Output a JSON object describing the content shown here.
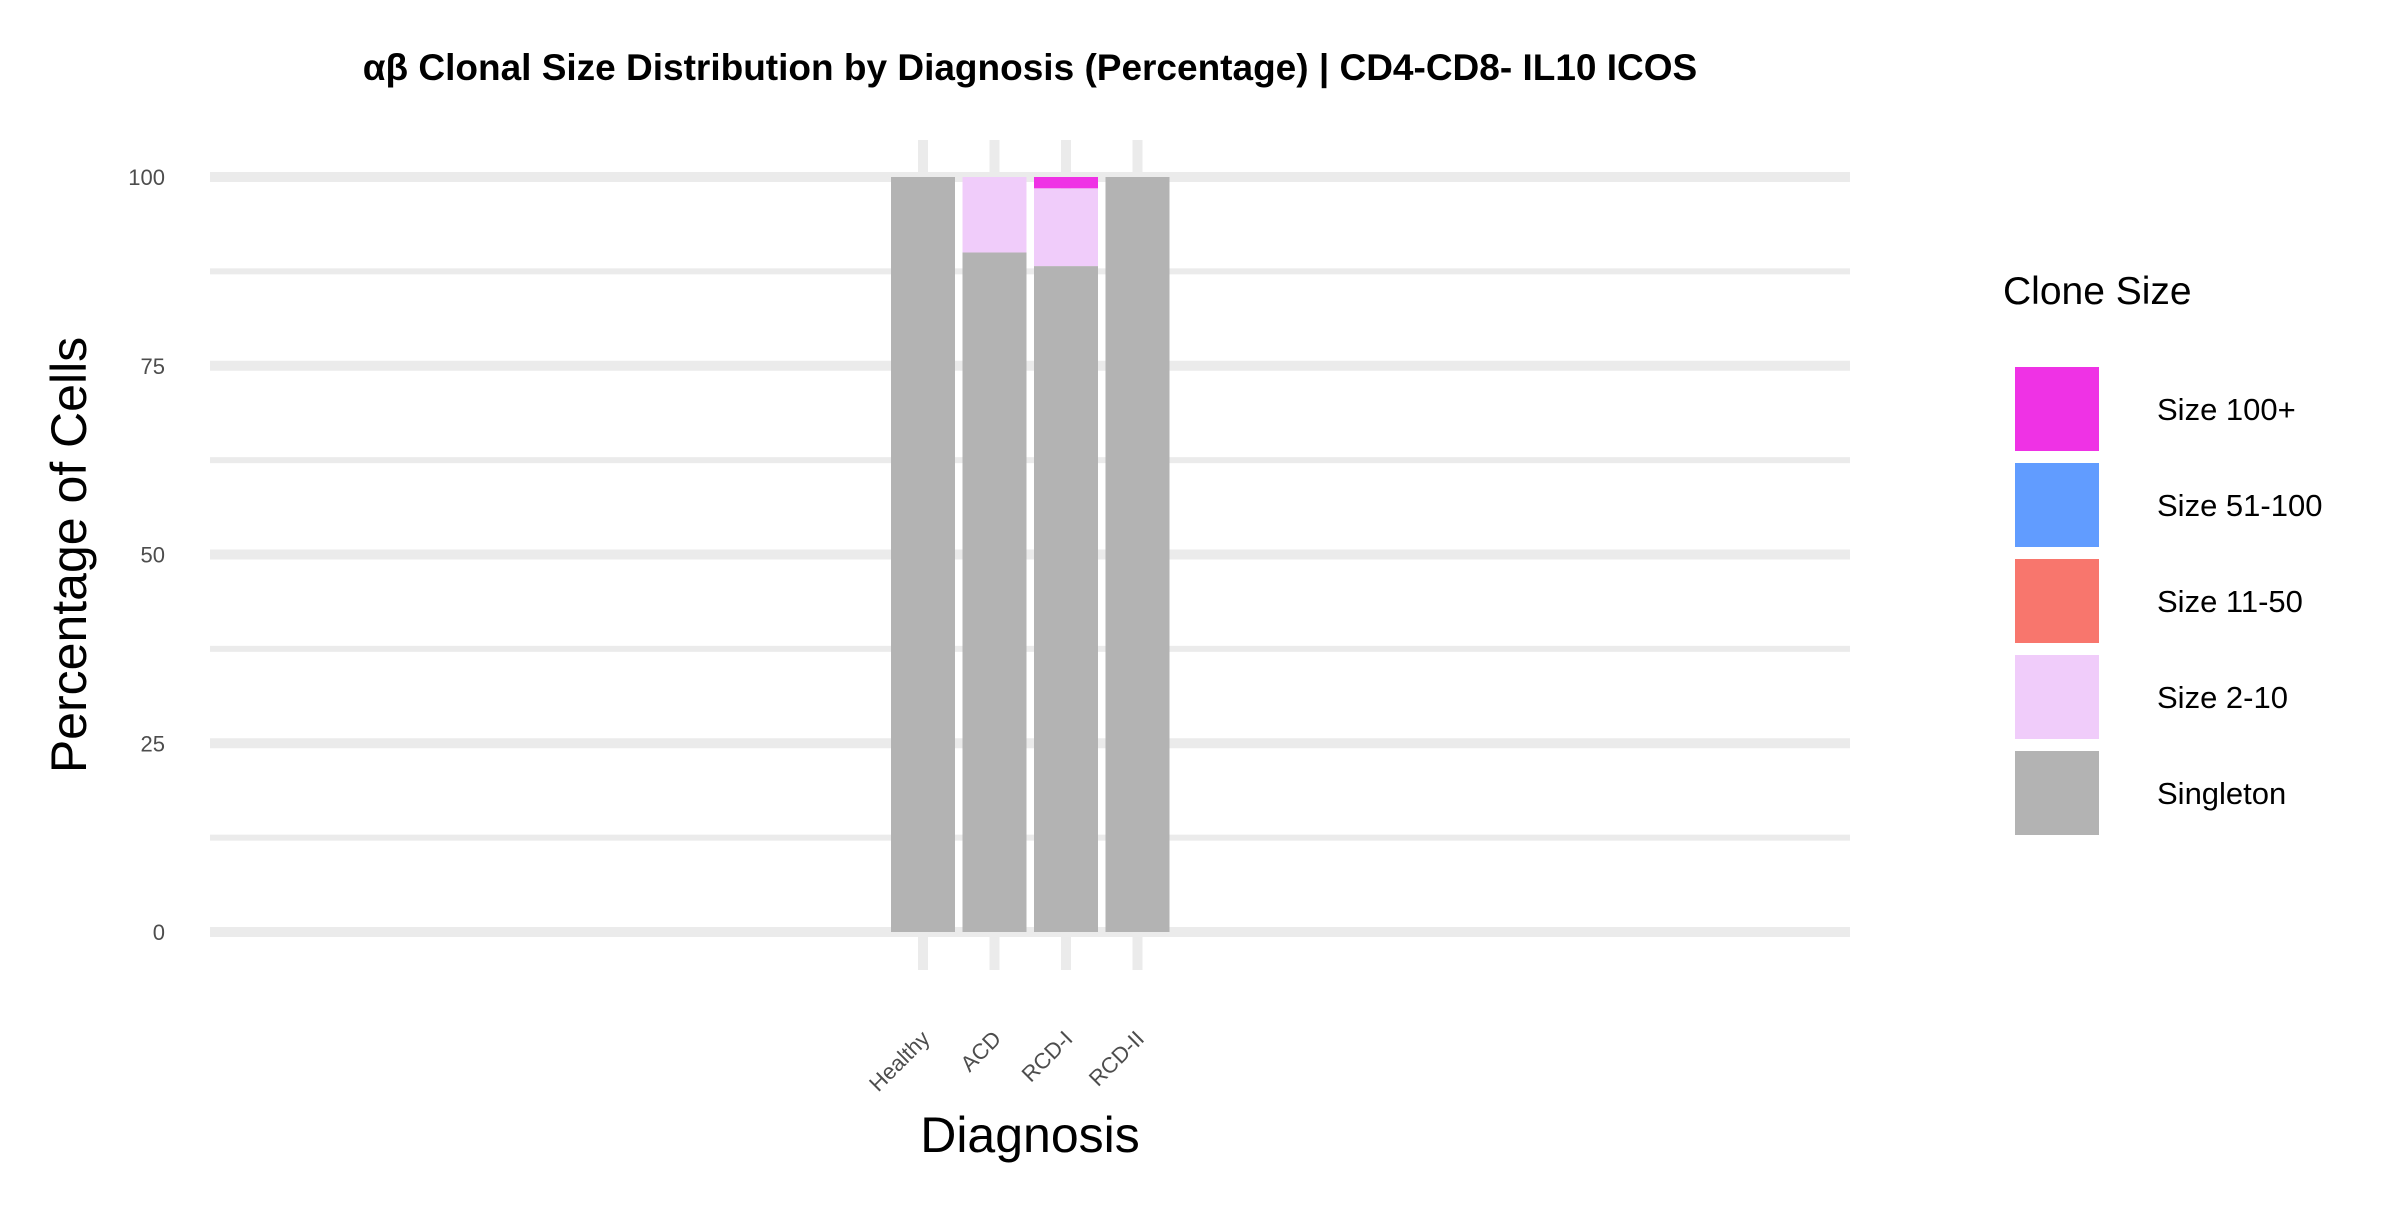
{
  "chart_data": {
    "type": "bar",
    "stacked": true,
    "title": "αβ Clonal Size Distribution by Diagnosis (Percentage) | CD4-CD8- IL10 ICOS",
    "xlabel": "Diagnosis",
    "ylabel": "Percentage of Cells",
    "ylim": [
      0,
      100
    ],
    "yticks": [
      "0",
      "25",
      "50",
      "75",
      "100"
    ],
    "categories": [
      "Healthy",
      "ACD",
      "RCD-I",
      "RCD-II"
    ],
    "series": [
      {
        "name": "Singleton",
        "color": "#b3b3b3",
        "values": [
          100,
          90,
          88.2,
          100
        ]
      },
      {
        "name": "Size 2-10",
        "color": "#f0ccfa",
        "values": [
          0,
          10,
          10.3,
          0
        ]
      },
      {
        "name": "Size 11-50",
        "color": "#f8766d",
        "values": [
          0,
          0,
          0,
          0
        ]
      },
      {
        "name": "Size 51-100",
        "color": "#619cff",
        "values": [
          0,
          0,
          0,
          0
        ]
      },
      {
        "name": "Size 100+",
        "color": "#ef32e5",
        "values": [
          0,
          0,
          1.5,
          0
        ]
      }
    ],
    "legend": {
      "title": "Clone Size",
      "position": "right",
      "order": [
        "Size 100+",
        "Size 51-100",
        "Size 11-50",
        "Size 2-10",
        "Singleton"
      ]
    },
    "grid": true
  }
}
